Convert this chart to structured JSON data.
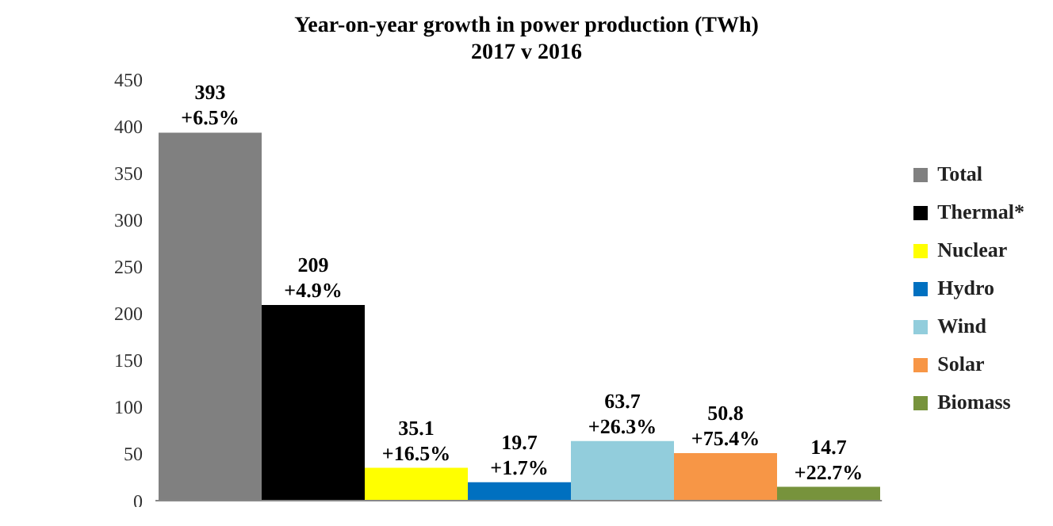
{
  "chart_data": {
    "type": "bar",
    "title": "Year-on-year growth in power production (TWh)\n2017 v 2016",
    "categories": [
      null
    ],
    "series": [
      {
        "name": "Total",
        "color": "#808080",
        "values": [
          393
        ],
        "value_labels": [
          "393\n+6.5%"
        ]
      },
      {
        "name": "Thermal*",
        "color": "#000000",
        "values": [
          209
        ],
        "value_labels": [
          "209\n+4.9%"
        ]
      },
      {
        "name": "Nuclear",
        "color": "#ffff00",
        "values": [
          35.1
        ],
        "value_labels": [
          "35.1\n+16.5%"
        ]
      },
      {
        "name": "Hydro",
        "color": "#0070c0",
        "values": [
          19.7
        ],
        "value_labels": [
          "19.7\n+1.7%"
        ]
      },
      {
        "name": "Wind",
        "color": "#92cddc",
        "values": [
          63.7
        ],
        "value_labels": [
          "63.7\n+26.3%"
        ]
      },
      {
        "name": "Solar",
        "color": "#f79646",
        "values": [
          50.8
        ],
        "value_labels": [
          "50.8\n+75.4%"
        ]
      },
      {
        "name": "Biomass",
        "color": "#77933c",
        "values": [
          14.7
        ],
        "value_labels": [
          "14.7\n+22.7%"
        ]
      }
    ],
    "ylim": [
      0,
      450
    ],
    "yticks": [
      0,
      50,
      100,
      150,
      200,
      250,
      300,
      350,
      400,
      450
    ],
    "legend": "right",
    "tick_labels": "y"
  }
}
